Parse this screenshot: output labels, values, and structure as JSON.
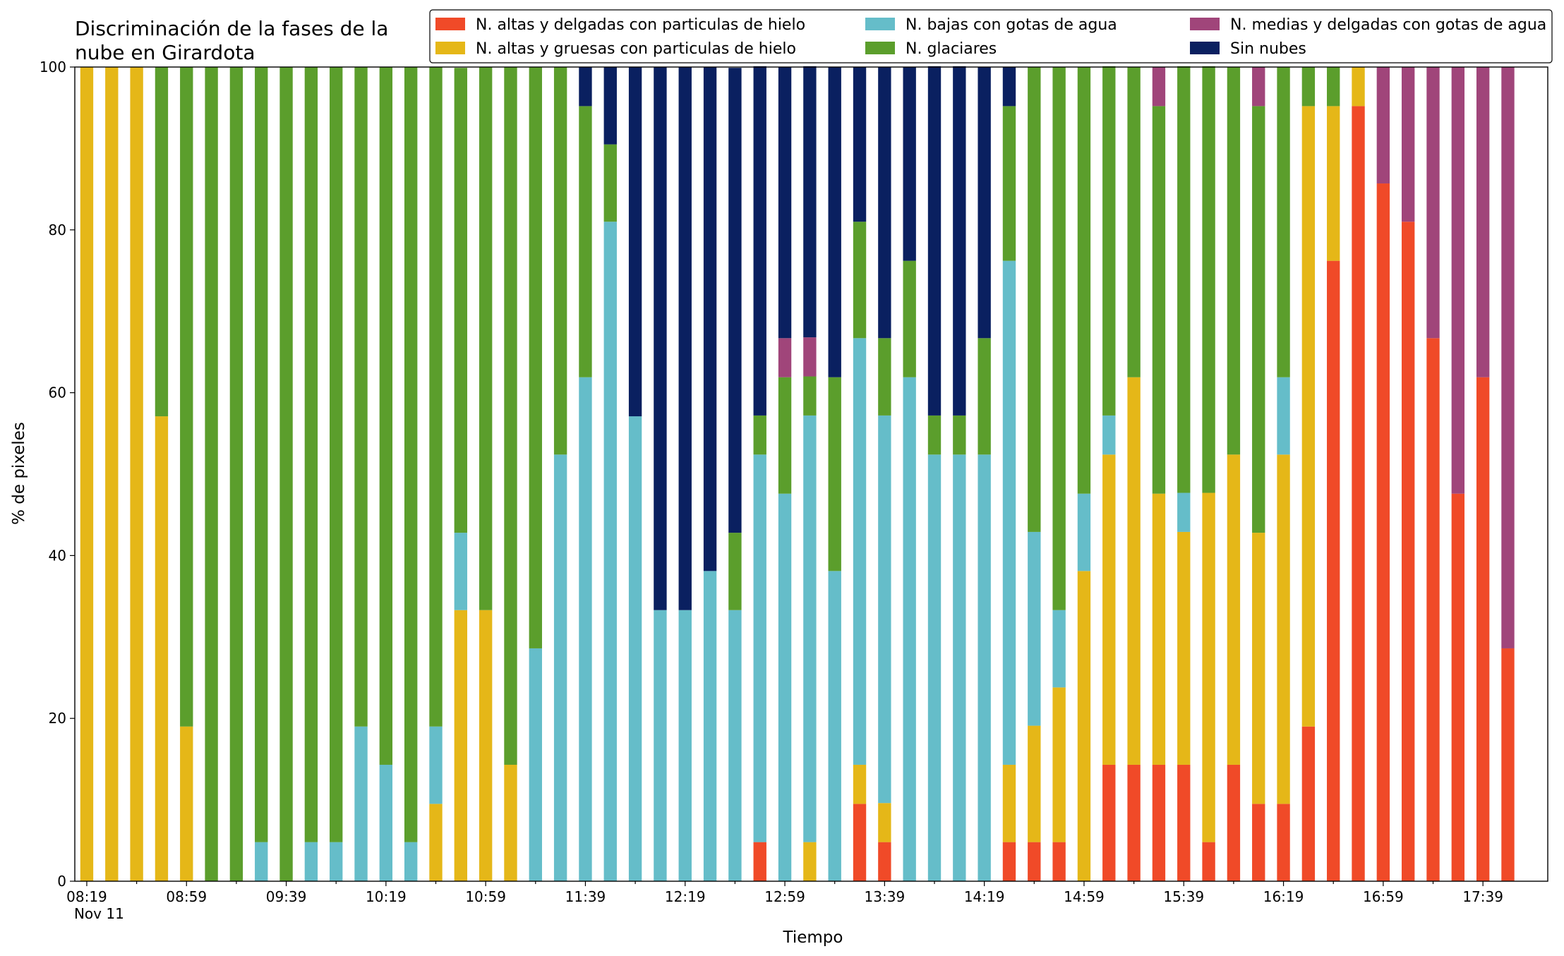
{
  "chart_data": {
    "type": "stacked_bar",
    "title": [
      "Discriminación de la fases de la",
      "nube en Girardota"
    ],
    "x_label": "Tiempo",
    "y_label": "% de pixeles",
    "x_date_label": "Nov 11",
    "categories": [
      "08:19",
      null,
      null,
      null,
      "08:59",
      null,
      null,
      null,
      "09:39",
      null,
      null,
      null,
      "10:19",
      null,
      null,
      null,
      "10:59",
      null,
      null,
      null,
      "11:39",
      null,
      null,
      null,
      "12:19",
      null,
      null,
      null,
      "12:59",
      null,
      null,
      null,
      "13:39",
      null,
      null,
      null,
      "14:19",
      null,
      null,
      null,
      "14:59",
      null,
      null,
      null,
      "15:39",
      null,
      null,
      null,
      "16:19",
      null,
      null,
      null,
      "16:59",
      null,
      null,
      null,
      "17:39",
      null
    ],
    "ylim": [
      0,
      100
    ],
    "yticks": [
      0,
      20,
      40,
      60,
      80,
      100
    ],
    "grid": false,
    "legend": "top",
    "series": [
      {
        "name": "N. altas y delgadas con particulas de hielo",
        "color": "#f04a28",
        "values": [
          0,
          0,
          0,
          0,
          0,
          0,
          0,
          0,
          0,
          0,
          0,
          0,
          0,
          0,
          0,
          0,
          0,
          0,
          0,
          0,
          0,
          0,
          0,
          0,
          0,
          0,
          0,
          4.8,
          0,
          0,
          0,
          9.5,
          4.8,
          0,
          0,
          0,
          0,
          4.8,
          4.8,
          4.8,
          0,
          14.3,
          14.3,
          14.3,
          14.3,
          4.8,
          14.3,
          9.5,
          9.5,
          19,
          76.2,
          95.2,
          85.7,
          81,
          66.7,
          47.6,
          61.9,
          28.6
        ]
      },
      {
        "name": "N. altas y gruesas con particulas de hielo",
        "color": "#e5b718",
        "values": [
          100,
          100,
          100,
          57.1,
          19,
          0,
          0,
          0,
          0,
          0,
          0,
          0,
          0,
          0,
          9.5,
          33.3,
          33.3,
          14.3,
          0,
          0,
          0,
          0,
          0,
          0,
          0,
          0,
          0,
          0,
          0,
          4.8,
          0,
          4.8,
          4.8,
          0,
          0,
          0,
          0,
          9.5,
          14.3,
          19,
          38.1,
          38.1,
          47.6,
          33.3,
          28.6,
          42.9,
          38.1,
          33.3,
          42.9,
          76.2,
          19,
          4.8,
          0,
          0,
          0,
          0,
          0,
          0
        ]
      },
      {
        "name": "N. bajas con gotas de agua",
        "color": "#65bdc9",
        "values": [
          0,
          0,
          0,
          0,
          0,
          0,
          0,
          4.8,
          0,
          4.8,
          4.8,
          19,
          14.3,
          4.8,
          9.5,
          9.5,
          0,
          0,
          28.6,
          52.4,
          61.9,
          81,
          57.1,
          33.3,
          33.3,
          38.1,
          33.3,
          47.6,
          47.6,
          52.4,
          38.1,
          52.4,
          47.6,
          61.9,
          52.4,
          52.4,
          52.4,
          61.9,
          23.8,
          9.5,
          9.5,
          4.8,
          0,
          0,
          4.8,
          0,
          0,
          0,
          9.5,
          0,
          0,
          0,
          0,
          0,
          0,
          0,
          0,
          0
        ]
      },
      {
        "name": "N. glaciares",
        "color": "#5b9e2c",
        "values": [
          0,
          0,
          0,
          42.9,
          81,
          100,
          100,
          95.2,
          100,
          95.2,
          95.2,
          81,
          85.7,
          95.2,
          81,
          57.1,
          66.7,
          85.7,
          71.4,
          47.6,
          33.3,
          9.5,
          0,
          0,
          0,
          0,
          9.5,
          4.8,
          14.3,
          4.8,
          23.8,
          14.3,
          9.5,
          14.3,
          4.8,
          4.8,
          14.3,
          19,
          57.1,
          66.7,
          52.4,
          42.9,
          38.1,
          47.6,
          52.4,
          52.4,
          47.6,
          52.4,
          38.1,
          4.8,
          4.8,
          0,
          0,
          0,
          0,
          0,
          0,
          0
        ]
      },
      {
        "name": "N. medias y delgadas con gotas de agua",
        "color": "#a0457a",
        "values": [
          0,
          0,
          0,
          0,
          0,
          0,
          0,
          0,
          0,
          0,
          0,
          0,
          0,
          0,
          0,
          0,
          0,
          0,
          0,
          0,
          0,
          0,
          0,
          0,
          0,
          0,
          0,
          0,
          4.8,
          4.8,
          0,
          0,
          0,
          0,
          0,
          0,
          0,
          0,
          0,
          0,
          0,
          0,
          0,
          4.8,
          0,
          0,
          0,
          4.8,
          0,
          0,
          0,
          0,
          14.3,
          19,
          33.3,
          52.4,
          38.1,
          71.4
        ]
      },
      {
        "name": "Sin nubes",
        "color": "#0a2060",
        "values": [
          0,
          0,
          0,
          0,
          0,
          0,
          0,
          0,
          0,
          0,
          0,
          0,
          0,
          0,
          0,
          0,
          0,
          0,
          0,
          0,
          4.8,
          9.5,
          42.9,
          66.7,
          66.7,
          61.9,
          57.1,
          42.9,
          33.3,
          33.3,
          38.1,
          19,
          33.3,
          23.8,
          42.9,
          42.9,
          33.3,
          4.8,
          0,
          0,
          0,
          0,
          0,
          0,
          0,
          0,
          0,
          0,
          0,
          0,
          0,
          0,
          0,
          0,
          0,
          0,
          0,
          0
        ]
      }
    ]
  }
}
